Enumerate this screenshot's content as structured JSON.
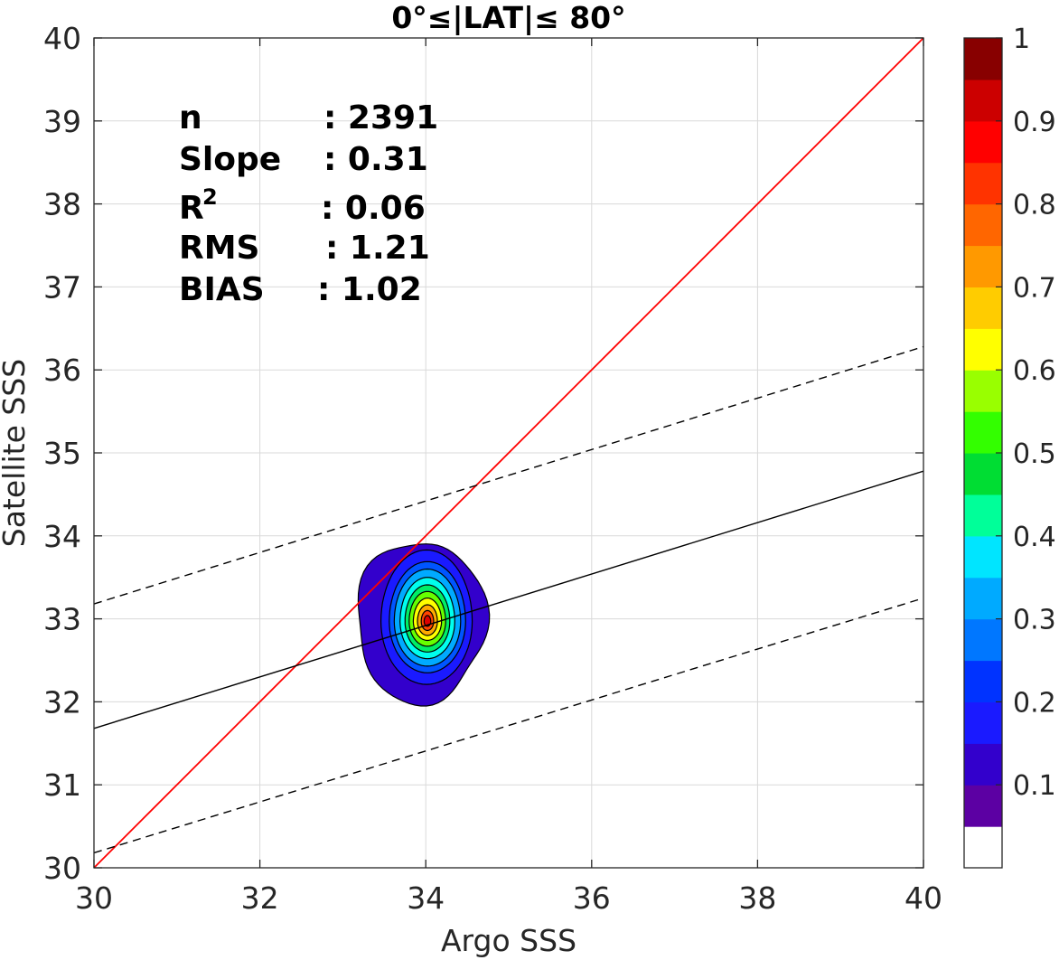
{
  "chart_data": {
    "type": "contour",
    "title": "0°≤|LAT|≤ 80°",
    "xlabel": "Argo SSS",
    "ylabel": "Satellite SSS",
    "xlim": [
      30,
      40
    ],
    "ylim": [
      30,
      40
    ],
    "x_ticks": [
      "30",
      "32",
      "34",
      "36",
      "38",
      "40"
    ],
    "y_ticks": [
      "30",
      "31",
      "32",
      "33",
      "34",
      "35",
      "36",
      "37",
      "38",
      "39",
      "40"
    ],
    "grid": true,
    "stats": [
      {
        "label": "n",
        "value": ": 2391"
      },
      {
        "label": "Slope",
        "value": ": 0.31"
      },
      {
        "label": "R",
        "sup": "2",
        "value": ": 0.06"
      },
      {
        "label": "RMS",
        "value": ": 1.21"
      },
      {
        "label": "BIAS",
        "value": ": 1.02"
      }
    ],
    "lines": [
      {
        "name": "one-to-one",
        "color": "#ff0000",
        "dash": "solid",
        "x": [
          30,
          40
        ],
        "y": [
          30,
          40
        ]
      },
      {
        "name": "regression",
        "color": "#000000",
        "dash": "solid",
        "x": [
          30,
          40
        ],
        "y": [
          31.68,
          34.78
        ]
      },
      {
        "name": "upper-bound",
        "color": "#000000",
        "dash": "dashed",
        "x": [
          30,
          40
        ],
        "y": [
          33.18,
          36.28
        ]
      },
      {
        "name": "lower-bound",
        "color": "#000000",
        "dash": "dashed",
        "x": [
          30,
          40
        ],
        "y": [
          30.18,
          33.25
        ]
      }
    ],
    "density_peak": {
      "x": 34.02,
      "y": 32.97
    },
    "contour_levels": [
      {
        "level": 0.05,
        "rx": 0.78,
        "ry_top": 0.98,
        "ry_bot": 0.97,
        "cx": 33.94,
        "cy": 32.96,
        "color": "#3300cc"
      },
      {
        "level": 0.15,
        "rx": 0.55,
        "ry_top": 0.86,
        "ry_bot": 0.76,
        "cx": 34.01,
        "cy": 32.97,
        "color": "#1a1aff"
      },
      {
        "level": 0.2,
        "rx": 0.46,
        "ry_top": 0.72,
        "ry_bot": 0.62,
        "cx": 34.02,
        "cy": 32.97,
        "color": "#0055ff"
      },
      {
        "level": 0.25,
        "rx": 0.4,
        "ry_top": 0.63,
        "ry_bot": 0.54,
        "cx": 34.02,
        "cy": 32.97,
        "color": "#00aaff"
      },
      {
        "level": 0.35,
        "rx": 0.33,
        "ry_top": 0.53,
        "ry_bot": 0.45,
        "cx": 34.02,
        "cy": 32.97,
        "color": "#00ffee"
      },
      {
        "level": 0.45,
        "rx": 0.27,
        "ry_top": 0.44,
        "ry_bot": 0.37,
        "cx": 34.02,
        "cy": 32.97,
        "color": "#00ee66"
      },
      {
        "level": 0.55,
        "rx": 0.22,
        "ry_top": 0.36,
        "ry_bot": 0.3,
        "cx": 34.02,
        "cy": 32.97,
        "color": "#66ff00"
      },
      {
        "level": 0.65,
        "rx": 0.17,
        "ry_top": 0.28,
        "ry_bot": 0.23,
        "cx": 34.02,
        "cy": 32.97,
        "color": "#ffff00"
      },
      {
        "level": 0.75,
        "rx": 0.12,
        "ry_top": 0.2,
        "ry_bot": 0.17,
        "cx": 34.02,
        "cy": 32.97,
        "color": "#ffaa00"
      },
      {
        "level": 0.85,
        "rx": 0.075,
        "ry_top": 0.13,
        "ry_bot": 0.11,
        "cx": 34.02,
        "cy": 32.97,
        "color": "#ff4400"
      },
      {
        "level": 0.92,
        "rx": 0.04,
        "ry_top": 0.07,
        "ry_bot": 0.06,
        "cx": 34.02,
        "cy": 32.97,
        "color": "#dd0000"
      }
    ],
    "colorbar": {
      "ticks": [
        "0.1",
        "0.2",
        "0.3",
        "0.4",
        "0.5",
        "0.6",
        "0.7",
        "0.8",
        "0.9",
        "1"
      ],
      "tick_values": [
        0.1,
        0.2,
        0.3,
        0.4,
        0.5,
        0.6,
        0.7,
        0.8,
        0.9,
        1.0
      ],
      "range": [
        0,
        1
      ],
      "colors": [
        "#ffffff",
        "#5c00a3",
        "#3300cc",
        "#1a1aff",
        "#0033ff",
        "#0077ff",
        "#00aaff",
        "#00e5ff",
        "#00ff99",
        "#00dd33",
        "#33ff00",
        "#99ff00",
        "#ffff00",
        "#ffcc00",
        "#ff9900",
        "#ff6600",
        "#ff3300",
        "#ff0000",
        "#cc0000",
        "#880000"
      ]
    }
  }
}
